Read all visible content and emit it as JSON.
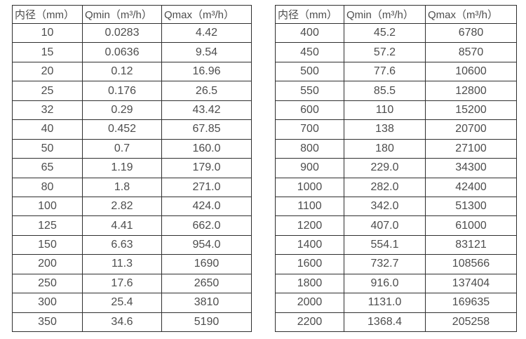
{
  "colors": {
    "background": "#ffffff",
    "border": "#2f2f2f",
    "text": "#4d4d4d"
  },
  "tables": [
    {
      "name": "flow-spec-table-small-diameters",
      "headers": [
        "内径（mm）",
        "Qmin（m³/h）",
        "Qmax（m³/h）"
      ],
      "rows": [
        [
          "10",
          "0.0283",
          "4.42"
        ],
        [
          "15",
          "0.0636",
          "9.54"
        ],
        [
          "20",
          "0.12",
          "16.96"
        ],
        [
          "25",
          "0.176",
          "26.5"
        ],
        [
          "32",
          "0.29",
          "43.42"
        ],
        [
          "40",
          "0.452",
          "67.85"
        ],
        [
          "50",
          "0.7",
          "160.0"
        ],
        [
          "65",
          "1.19",
          "179.0"
        ],
        [
          "80",
          "1.8",
          "271.0"
        ],
        [
          "100",
          "2.82",
          "424.0"
        ],
        [
          "125",
          "4.41",
          "662.0"
        ],
        [
          "150",
          "6.63",
          "954.0"
        ],
        [
          "200",
          "11.3",
          "1690"
        ],
        [
          "250",
          "17.6",
          "2650"
        ],
        [
          "300",
          "25.4",
          "3810"
        ],
        [
          "350",
          "34.6",
          "5190"
        ]
      ]
    },
    {
      "name": "flow-spec-table-large-diameters",
      "headers": [
        "内径（mm）",
        "Qmin（m³/h）",
        "Qmax（m³/h）"
      ],
      "rows": [
        [
          "400",
          "45.2",
          "6780"
        ],
        [
          "450",
          "57.2",
          "8570"
        ],
        [
          "500",
          "77.6",
          "10600"
        ],
        [
          "550",
          "85.5",
          "12800"
        ],
        [
          "600",
          "110",
          "15200"
        ],
        [
          "700",
          "138",
          "20700"
        ],
        [
          "800",
          "180",
          "27100"
        ],
        [
          "900",
          "229.0",
          "34300"
        ],
        [
          "1000",
          "282.0",
          "42400"
        ],
        [
          "1100",
          "342.0",
          "51300"
        ],
        [
          "1200",
          "407.0",
          "61000"
        ],
        [
          "1400",
          "554.1",
          "83121"
        ],
        [
          "1600",
          "732.7",
          "108566"
        ],
        [
          "1800",
          "916.0",
          "137404"
        ],
        [
          "2000",
          "1131.0",
          "169635"
        ],
        [
          "2200",
          "1368.4",
          "205258"
        ]
      ]
    }
  ]
}
